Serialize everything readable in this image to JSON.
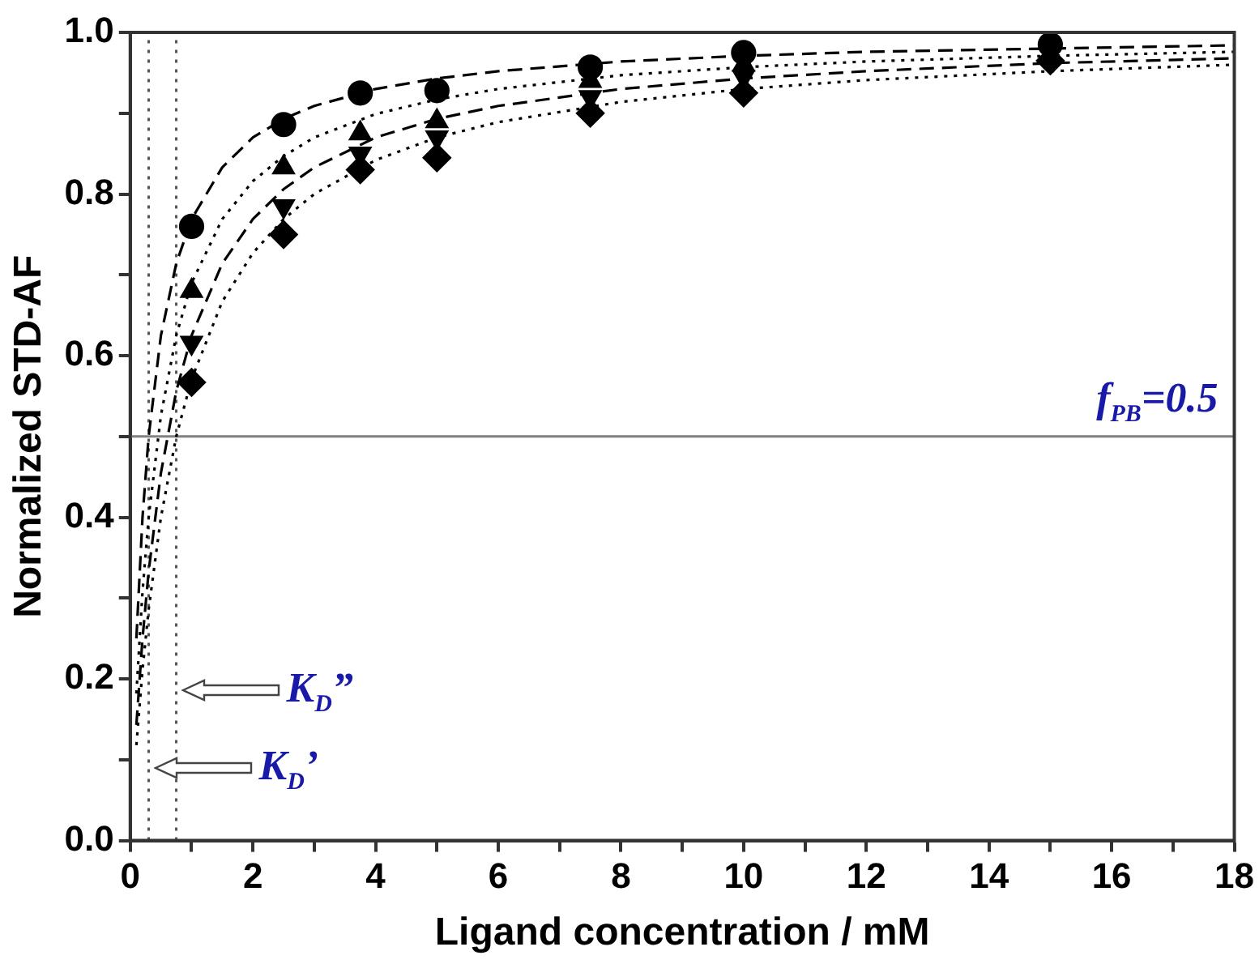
{
  "chart_data": {
    "type": "scatter",
    "xlabel": "Ligand concentration / mM",
    "ylabel": "Normalized STD-AF",
    "xlim": [
      0,
      18
    ],
    "xticks": [
      0,
      {
        "value": 1,
        "label": null
      },
      2,
      {
        "value": 3,
        "label": null
      },
      4,
      {
        "value": 5,
        "label": null
      },
      6,
      {
        "value": 7,
        "label": null
      },
      8,
      {
        "value": 9,
        "label": null
      },
      10,
      {
        "value": 11,
        "label": null
      },
      12,
      {
        "value": 13,
        "label": null
      },
      14,
      {
        "value": 15,
        "label": null
      },
      16,
      {
        "value": 17,
        "label": null
      },
      18
    ],
    "ylim": [
      0,
      1
    ],
    "yticks": [
      {
        "value": 0,
        "label": "0.0"
      },
      {
        "value": 0.1,
        "label": null
      },
      0.2,
      {
        "value": 0.3,
        "label": null
      },
      0.4,
      {
        "value": 0.5,
        "label": null
      },
      0.6,
      {
        "value": 0.7,
        "label": null
      },
      0.8,
      {
        "value": 0.9,
        "label": null
      },
      {
        "value": 1,
        "label": "1.0"
      }
    ],
    "grid": false,
    "legend": false,
    "series": [
      {
        "type": "scatter",
        "marker": "circle",
        "color": "#000000",
        "x": [
          1,
          2.5,
          3.75,
          5,
          7.5,
          10,
          15
        ],
        "values": [
          0.76,
          0.886,
          0.925,
          0.928,
          0.957,
          0.975,
          0.985
        ]
      },
      {
        "type": "scatter",
        "marker": "triangle",
        "color": "#000000",
        "x": [
          1,
          2.5,
          3.75,
          5,
          7.5,
          10
        ],
        "values": [
          0.68,
          0.833,
          0.875,
          0.89,
          0.94,
          0.96
        ]
      },
      {
        "type": "scatter",
        "marker": "triangle-down",
        "color": "#000000",
        "x": [
          1,
          2.5,
          3.75,
          5,
          7.5,
          10
        ],
        "values": [
          0.616,
          0.785,
          0.85,
          0.87,
          0.92,
          0.945
        ]
      },
      {
        "type": "scatter",
        "marker": "diamond",
        "color": "#000000",
        "x": [
          1,
          2.5,
          3.75,
          5,
          7.5,
          10,
          15
        ],
        "values": [
          0.567,
          0.75,
          0.83,
          0.845,
          0.9,
          0.925,
          0.965
        ]
      },
      {
        "type": "line",
        "marker": "none",
        "line_style": "dashed",
        "color": "#000000",
        "x": [
          0.1,
          0.2,
          0.3,
          0.5,
          0.75,
          1,
          1.5,
          2,
          2.5,
          3,
          4,
          5,
          6,
          8,
          10,
          12,
          15,
          18
        ],
        "values": [
          0.25,
          0.4,
          0.5,
          0.625,
          0.714,
          0.769,
          0.833,
          0.87,
          0.893,
          0.909,
          0.93,
          0.943,
          0.952,
          0.964,
          0.971,
          0.976,
          0.98,
          0.984
        ]
      },
      {
        "type": "line",
        "marker": "none",
        "line_style": "dotted",
        "color": "#000000",
        "x": [
          0.1,
          0.2,
          0.3,
          0.5,
          0.75,
          1,
          1.5,
          2,
          2.5,
          3,
          4,
          5,
          6,
          8,
          10,
          12,
          15,
          18
        ],
        "values": [
          0.182,
          0.308,
          0.4,
          0.526,
          0.625,
          0.69,
          0.769,
          0.816,
          0.847,
          0.87,
          0.899,
          0.917,
          0.93,
          0.947,
          0.957,
          0.964,
          0.971,
          0.976
        ]
      },
      {
        "type": "line",
        "marker": "none",
        "line_style": "dashed",
        "color": "#000000",
        "x": [
          0.1,
          0.2,
          0.3,
          0.5,
          0.75,
          1,
          1.5,
          2,
          2.5,
          3,
          4,
          5,
          6,
          8,
          10,
          12,
          15,
          18
        ],
        "values": [
          0.143,
          0.25,
          0.333,
          0.455,
          0.556,
          0.625,
          0.714,
          0.769,
          0.806,
          0.833,
          0.87,
          0.893,
          0.909,
          0.93,
          0.943,
          0.952,
          0.962,
          0.968
        ]
      },
      {
        "type": "line",
        "marker": "none",
        "line_style": "dotted",
        "color": "#000000",
        "x": [
          0.1,
          0.2,
          0.3,
          0.5,
          0.75,
          1,
          1.5,
          2,
          2.5,
          3,
          4,
          5,
          6,
          8,
          10,
          12,
          15,
          18
        ],
        "values": [
          0.118,
          0.211,
          0.286,
          0.4,
          0.5,
          0.571,
          0.667,
          0.727,
          0.769,
          0.8,
          0.842,
          0.87,
          0.889,
          0.914,
          0.93,
          0.941,
          0.952,
          0.96
        ]
      }
    ],
    "ref_lines": [
      {
        "axis": "y",
        "value": 0.5,
        "label": "f$_{PB}$=0.5",
        "color": "#808080",
        "line_style": "solid"
      },
      {
        "axis": "x",
        "value": 0.3,
        "label": "K$_{D}$’",
        "color": "#555555",
        "line_style": "dotted"
      },
      {
        "axis": "x",
        "value": 0.75,
        "label": "K$_{D}$”",
        "color": "#555555",
        "line_style": "dotted"
      }
    ]
  }
}
